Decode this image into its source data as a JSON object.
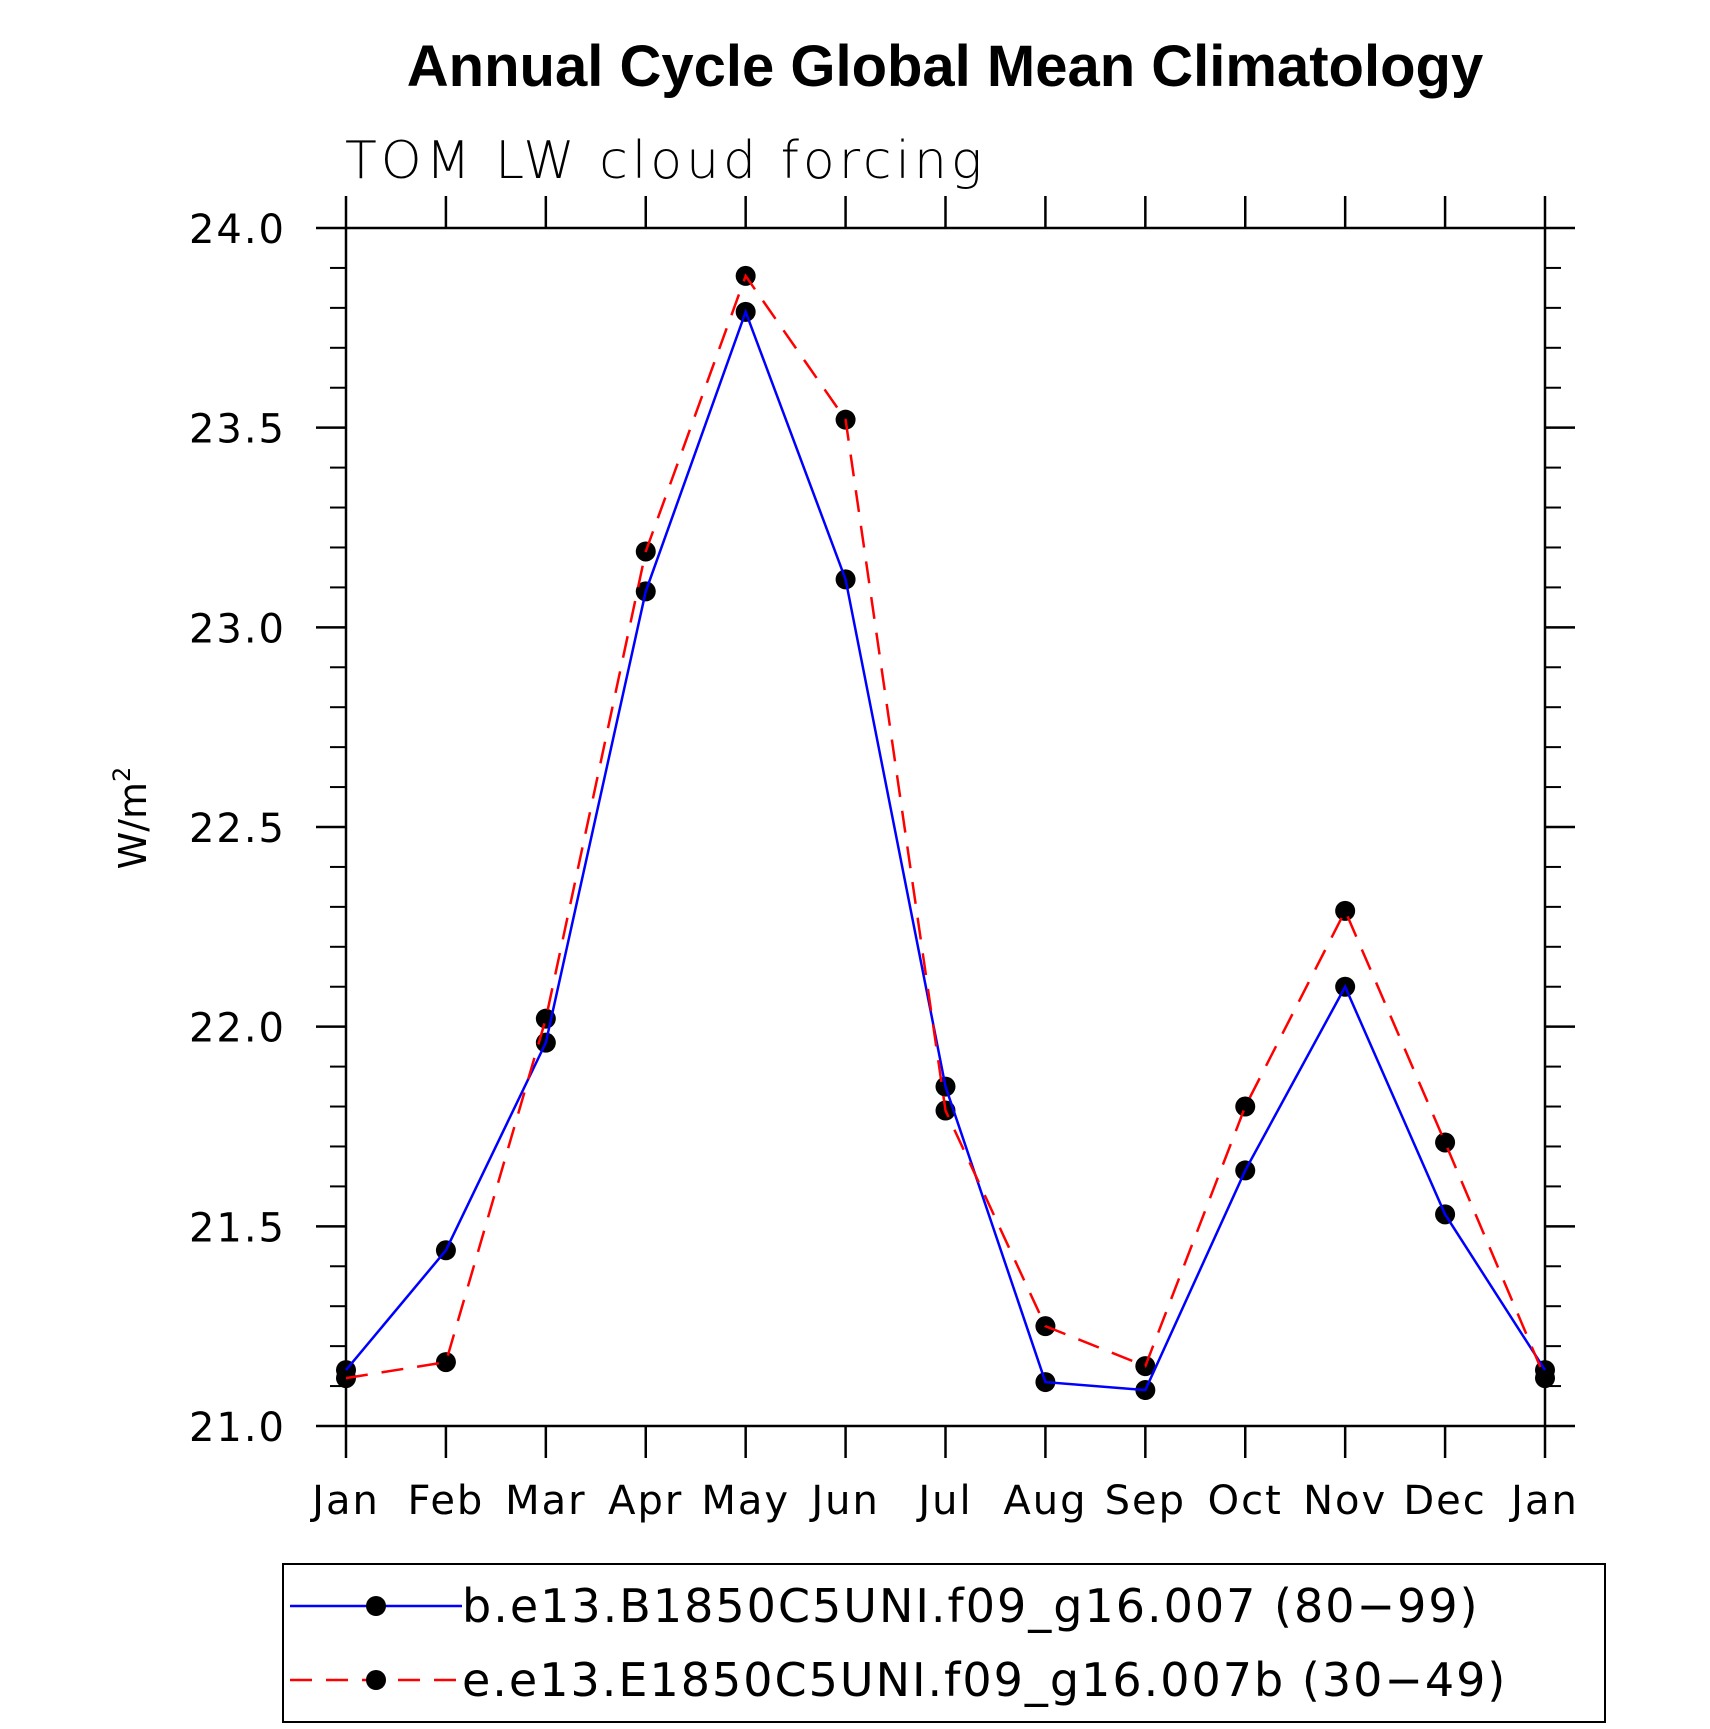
{
  "chart_data": {
    "type": "line",
    "title": "Annual Cycle Global Mean Climatology",
    "subtitle": "TOM LW cloud forcing",
    "ylabel": "W/m",
    "ylabel_superscript": "2",
    "xlabel": "",
    "categories": [
      "Jan",
      "Feb",
      "Mar",
      "Apr",
      "May",
      "Jun",
      "Jul",
      "Aug",
      "Sep",
      "Oct",
      "Nov",
      "Dec",
      "Jan"
    ],
    "ylim": [
      21.0,
      24.0
    ],
    "yticks": [
      "21.0",
      "21.5",
      "22.0",
      "22.5",
      "23.0",
      "23.5",
      "24.0"
    ],
    "series": [
      {
        "name": "b.e13.B1850C5UNI.f09_g16.007 (80−99)",
        "color": "#0000ff",
        "dash": "solid",
        "values": [
          21.14,
          21.44,
          21.96,
          23.09,
          23.79,
          23.12,
          21.85,
          21.11,
          21.09,
          21.64,
          22.1,
          21.53,
          21.14
        ]
      },
      {
        "name": "e.e13.E1850C5UNI.f09_g16.007b (30−49)",
        "color": "#ff0000",
        "dash": "dashed",
        "values": [
          21.12,
          21.16,
          22.02,
          23.19,
          23.88,
          23.52,
          21.79,
          21.25,
          21.15,
          21.8,
          22.29,
          21.71,
          21.12
        ]
      }
    ],
    "legend_position": "bottom"
  }
}
